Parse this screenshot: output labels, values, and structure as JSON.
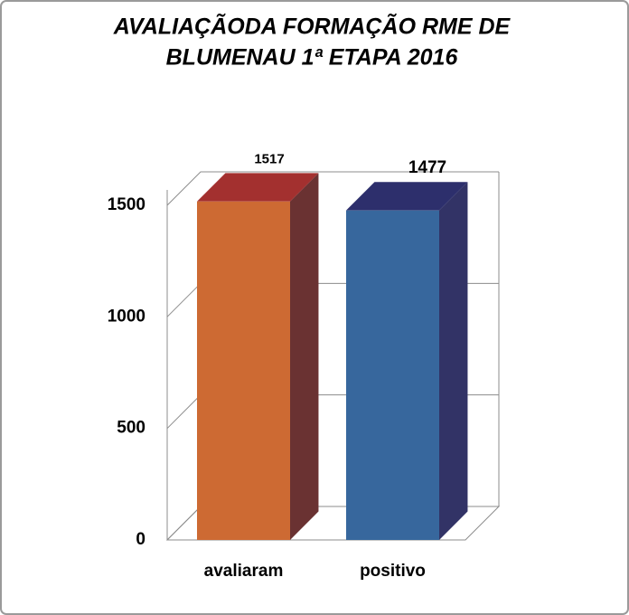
{
  "chart_data": {
    "type": "bar3d",
    "title": [
      "AVALIAÇÃODA FORMAÇÃO  RME DE",
      "BLUMENAU 1ª ETAPA    2016"
    ],
    "categories": [
      "avaliaram",
      "positivo"
    ],
    "values": [
      1517,
      1477
    ],
    "colors": [
      "#cd6a33",
      "#37679d"
    ],
    "top_colors": [
      "#a3302f",
      "#2d2f6c"
    ],
    "side_colors": [
      "#6a3232",
      "#323366"
    ],
    "ylim": [
      0,
      1500
    ],
    "yticks": [
      0,
      500,
      1000,
      1500
    ],
    "grid": true
  }
}
